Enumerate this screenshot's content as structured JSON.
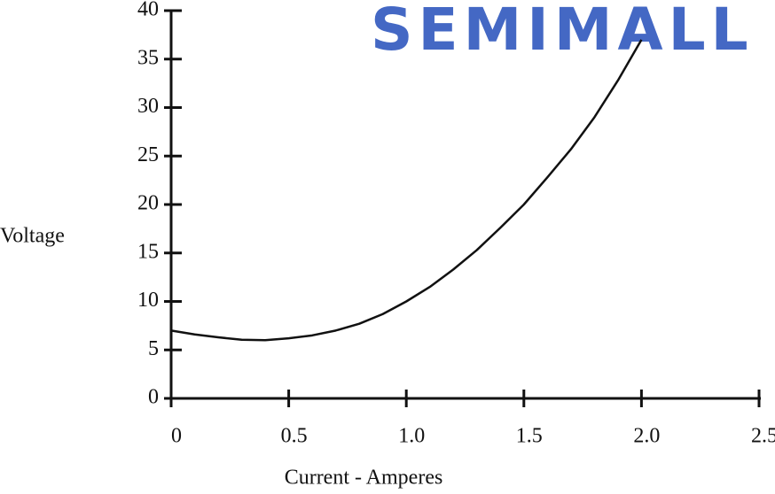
{
  "chart_data": {
    "type": "line",
    "watermark": "SEMIMALL",
    "ylabel": "Voltage",
    "xlabel": "Current - Amperes",
    "x": [
      0,
      0.1,
      0.2,
      0.3,
      0.4,
      0.5,
      0.6,
      0.7,
      0.8,
      0.9,
      1.0,
      1.1,
      1.2,
      1.3,
      1.4,
      1.5,
      1.6,
      1.7,
      1.8,
      1.9,
      2.0
    ],
    "values": [
      7.0,
      6.6,
      6.3,
      6.05,
      6.0,
      6.2,
      6.5,
      7.0,
      7.7,
      8.7,
      10.0,
      11.5,
      13.3,
      15.3,
      17.6,
      20.0,
      22.8,
      25.7,
      29.0,
      32.8,
      37.0
    ],
    "color": "#111111",
    "xlim": [
      0,
      2.5
    ],
    "xticks": [
      0,
      0.5,
      {
        "value": 1,
        "label": "1.0"
      },
      1.5,
      {
        "value": 2,
        "label": "2.0"
      },
      2.5
    ],
    "ylim": [
      0,
      40
    ],
    "yticks": [
      0,
      5,
      10,
      15,
      20,
      25,
      30,
      35,
      40
    ],
    "grid": false
  }
}
